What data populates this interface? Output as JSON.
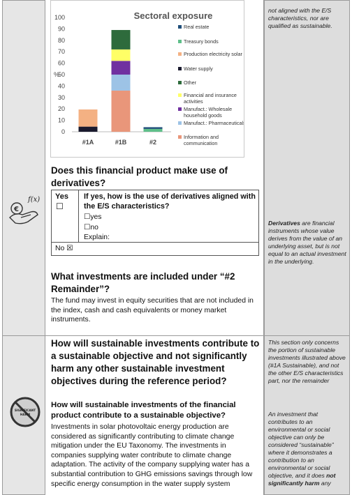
{
  "chart_data": {
    "type": "bar",
    "title": "Sectoral exposure",
    "ylabel": "%",
    "ylim": [
      0,
      100
    ],
    "yticks": [
      0,
      10,
      20,
      30,
      40,
      50,
      60,
      70,
      80,
      90,
      100
    ],
    "categories": [
      "#1A",
      "#1B",
      "#2"
    ],
    "series": [
      {
        "name": "Real estate",
        "color": "#1f4e79",
        "values": [
          0,
          0,
          1.5
        ]
      },
      {
        "name": "Treasury bonds",
        "color": "#5fbf8a",
        "values": [
          0,
          0,
          2.5
        ]
      },
      {
        "name": "Production electricity solar",
        "color": "#f4b183",
        "values": [
          15,
          0,
          0
        ]
      },
      {
        "name": "Water supply",
        "color": "#1a1a2e",
        "values": [
          4.5,
          0,
          0
        ]
      },
      {
        "name": "Other",
        "color": "#2e6b3c",
        "values": [
          0,
          17,
          0
        ]
      },
      {
        "name": "Financial and insurance activities",
        "color": "#ffff66",
        "values": [
          0,
          10,
          0
        ]
      },
      {
        "name": "Manufact.: Wholesale household goods",
        "color": "#7030a0",
        "values": [
          0,
          12,
          0
        ]
      },
      {
        "name": "Manufact.: Pharmaceuticals",
        "color": "#9dc3e6",
        "values": [
          0,
          14,
          0
        ]
      },
      {
        "name": "Information and communication",
        "color": "#e9967a",
        "values": [
          0,
          36,
          0
        ]
      }
    ],
    "stack_order": [
      "Information and communication",
      "Manufact.: Pharmaceuticals",
      "Manufact.: Wholesale household goods",
      "Financial and insurance activities",
      "Other",
      "Water supply",
      "Production electricity solar",
      "Treasury bonds",
      "Real estate"
    ],
    "grid": false,
    "legend": "right"
  },
  "legend": [
    {
      "label": "Real estate",
      "color": "#1f4e79"
    },
    {
      "label": "Treasury bonds",
      "color": "#5fbf8a"
    },
    {
      "label": "Production electricity solar",
      "color": "#f4b183"
    },
    {
      "label": "Water supply",
      "color": "#1a1a2e"
    },
    {
      "label": "Other",
      "color": "#2e6b3c"
    },
    {
      "label": "Financial and insurance activities",
      "color": "#ffff66"
    },
    {
      "label": "Manufact.: Wholesale household goods",
      "color": "#7030a0"
    },
    {
      "label": "Manufact.: Pharmaceuticals",
      "color": "#9dc3e6"
    },
    {
      "label": "Information and communication",
      "color": "#e9967a"
    }
  ],
  "side_top": "not aligned with the E/S characteristics, nor are qualified as sustainable.",
  "derivatives": {
    "question": "Does this financial product make use of derivatives?",
    "yes_label": "Yes",
    "yes_box": "☐",
    "sub_question": "If yes, how is the use of derivatives aligned with the E/S characteristics?",
    "opt_yes": "☐yes",
    "opt_no": "☐no",
    "explain": "Explain:",
    "no_label": "No ☒"
  },
  "side_derivatives": {
    "term": "Derivatives",
    "text": " are financial instruments whose value derives from the value of an underlying asset, but is not equal to an actual investment in the underlying."
  },
  "remainder": {
    "question": "What investments are included under “#2 Remainder”?",
    "text": "The fund may invest in equity securities that are not included in the index, cash and cash equivalents or money market instruments."
  },
  "section2": {
    "heading": "How will sustainable investments contribute to a sustainable objective and not significantly harm any other sustainable investment objectives during the reference period?",
    "sub_heading": "How will sustainable investments of the financial product contribute to a sustainable objective?",
    "text": "Investments in solar photovoltaic energy production are considered as significantly contributing to climate change mitigation under the EU Taxonomy. The investments in companies supplying water contribute to climate change adaptation. The activity of the company supplying water has a substantial contribution to GHG emissions savings through low specific energy consumption in the water supply system"
  },
  "side_section2": "This section only concerns the portion of sustainable investments illustrated above (#1A Sustainable), and not the other E/S characteristics part, nor the remainder",
  "side_harm": {
    "text_a": "An investment that contributes to an environmental or social objective can only be considered “sustainable” where it demonstrates a contribution to an environmental or social objective, and it does ",
    "text_b": "not significantly harm",
    "text_c": " any"
  },
  "icons": {
    "derivative_icon_label": "f(x)",
    "no_harm_label": "SIGNIFICANT HARM"
  }
}
